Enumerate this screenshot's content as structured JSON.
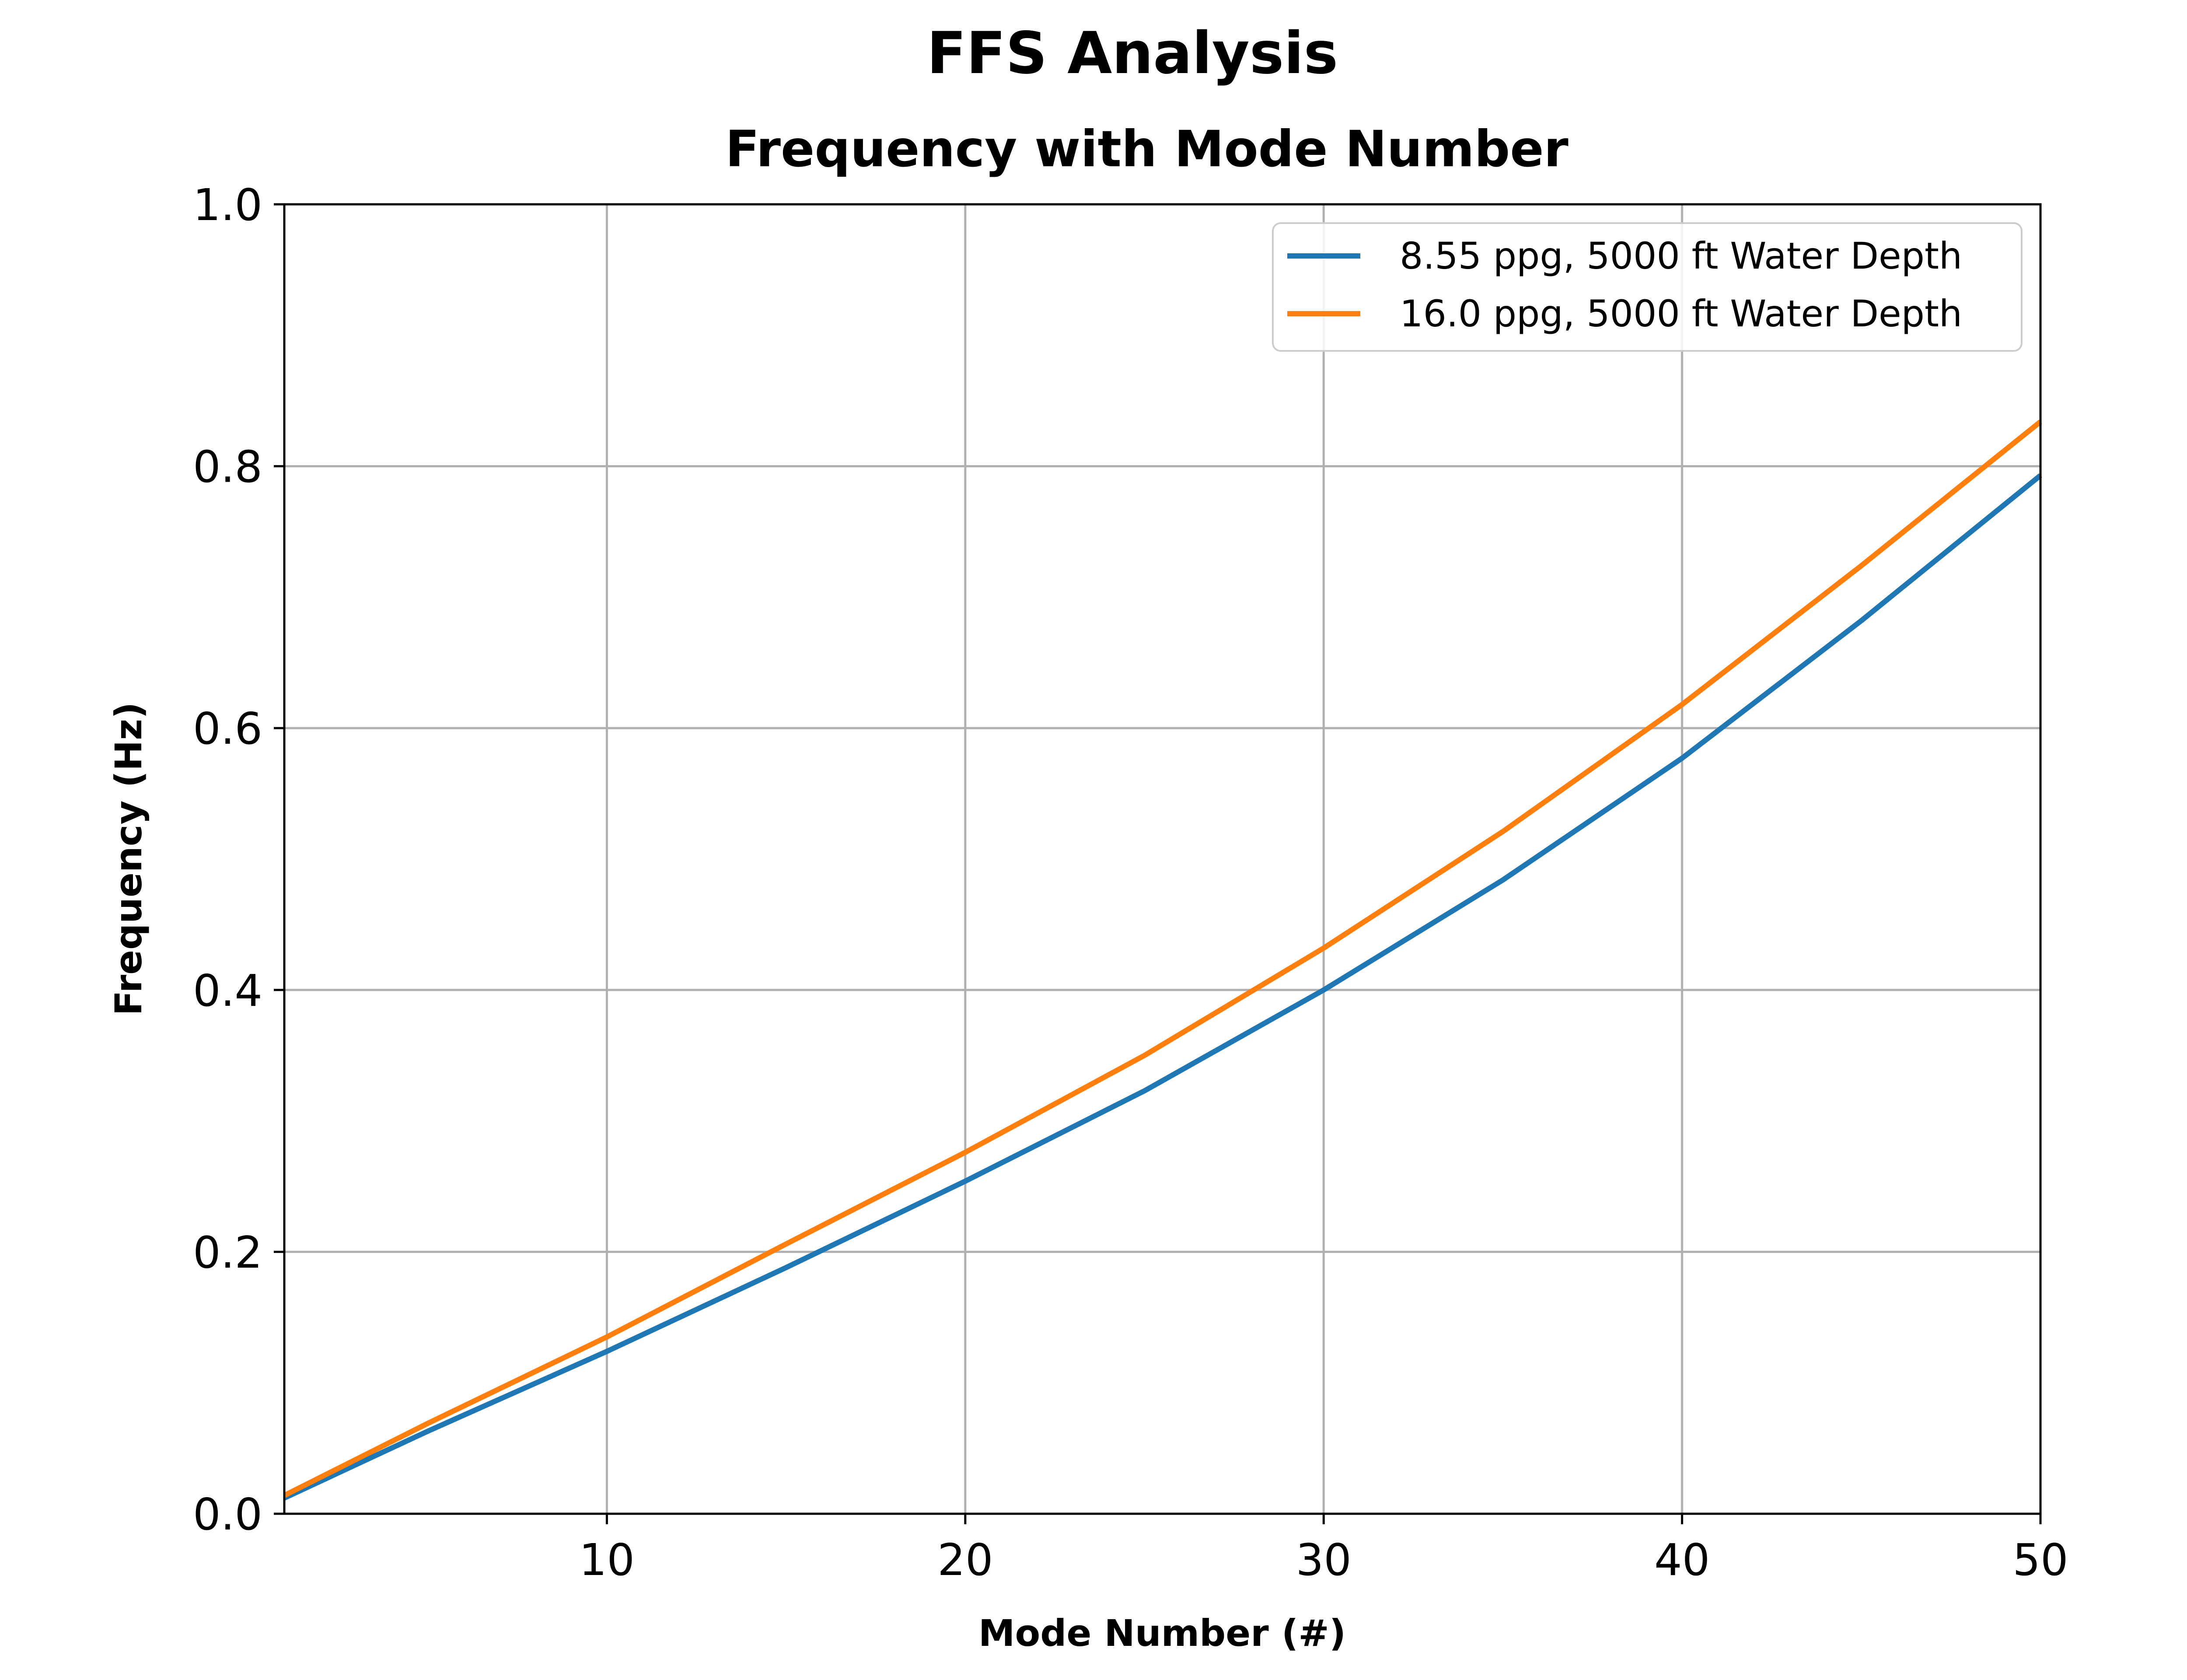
{
  "figure": {
    "suptitle": "FFS Analysis"
  },
  "chart_data": {
    "type": "line",
    "title": "Frequency with Mode Number",
    "xlabel": "Mode Number (#)",
    "ylabel": "Frequency (Hz)",
    "xlim": [
      1,
      50
    ],
    "ylim": [
      0.0,
      1.0
    ],
    "xticks": [
      10,
      20,
      30,
      40,
      50
    ],
    "xtick_labels": [
      "10",
      "20",
      "30",
      "40",
      "50"
    ],
    "yticks": [
      0.0,
      0.2,
      0.4,
      0.6,
      0.8,
      1.0
    ],
    "ytick_labels": [
      "0.0",
      "0.2",
      "0.4",
      "0.6",
      "0.8",
      "1.0"
    ],
    "grid": true,
    "legend_position": "top-right",
    "x": [
      1,
      5,
      10,
      15,
      20,
      25,
      30,
      35,
      40,
      45,
      50
    ],
    "series": [
      {
        "name": "8.55 ppg, 5000 ft Water Depth",
        "color": "#1f77b4",
        "values": [
          0.012,
          0.063,
          0.124,
          0.188,
          0.254,
          0.323,
          0.4,
          0.484,
          0.577,
          0.682,
          0.793
        ]
      },
      {
        "name": "16.0 ppg, 5000 ft Water Depth",
        "color": "#ff7f0e",
        "values": [
          0.014,
          0.069,
          0.135,
          0.206,
          0.276,
          0.35,
          0.432,
          0.521,
          0.618,
          0.724,
          0.834
        ]
      }
    ]
  }
}
